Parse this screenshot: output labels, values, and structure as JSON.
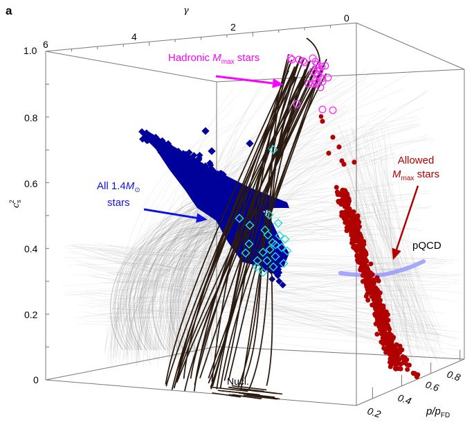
{
  "panel_label": "a",
  "chart_data": {
    "type": "scatter",
    "dimensions": "3d",
    "axes": {
      "gamma": {
        "label": "γ",
        "ticks": [
          "6",
          "4",
          "2",
          "0"
        ],
        "range": [
          6,
          0
        ]
      },
      "cs2": {
        "label_base": "c",
        "label_sub": "s",
        "label_sup": "2",
        "ticks": [
          "0",
          "0.2",
          "0.4",
          "0.6",
          "0.8",
          "1.0"
        ],
        "range": [
          0,
          1.0
        ]
      },
      "p_over_pfd": {
        "label_base": "p/p",
        "label_sub": "FD",
        "ticks": [
          "0.2",
          "0.4",
          "0.6",
          "0.8"
        ],
        "range": [
          0.1,
          0.9
        ]
      }
    },
    "annotations": {
      "hadronic": {
        "text_pre": "Hadronic ",
        "text_m": "M",
        "text_sub": "max",
        "text_post": " stars",
        "color": "#ff00ff"
      },
      "all14": {
        "line1_pre": "All 1.4",
        "line1_m": "M",
        "line1_sub": "⊙",
        "line2": "stars",
        "color": "#1010e0"
      },
      "allowed": {
        "line1": "Allowed",
        "line2_m": "M",
        "line2_sub": "max",
        "line2_post": " stars",
        "color": "#b00000"
      },
      "pqcd": {
        "text": "pQCD",
        "color": "#000000"
      },
      "nucl": {
        "text": "Nucl.",
        "color": "#000000"
      }
    },
    "series": [
      {
        "name": "EoS ensemble (background)",
        "color": "#9a9a9a",
        "style": "thin-lines"
      },
      {
        "name": "Hadronic-branch EoS",
        "color": "#2a1a10",
        "style": "thick-lines"
      },
      {
        "name": "All 1.4 Msun stars",
        "color": "#00009a",
        "marker": "filled-diamond"
      },
      {
        "name": "1.4 Msun stars (subset)",
        "color": "#22dddd",
        "marker": "open-diamond"
      },
      {
        "name": "Hadronic Mmax stars",
        "color": "#ff33ff",
        "marker": "open-circle"
      },
      {
        "name": "Allowed Mmax stars",
        "color": "#b00000",
        "marker": "filled-circle"
      },
      {
        "name": "pQCD",
        "color": "#9999ff",
        "style": "thick-band"
      }
    ],
    "colors": {
      "box": "#777777",
      "tick_text": "#000000"
    }
  }
}
